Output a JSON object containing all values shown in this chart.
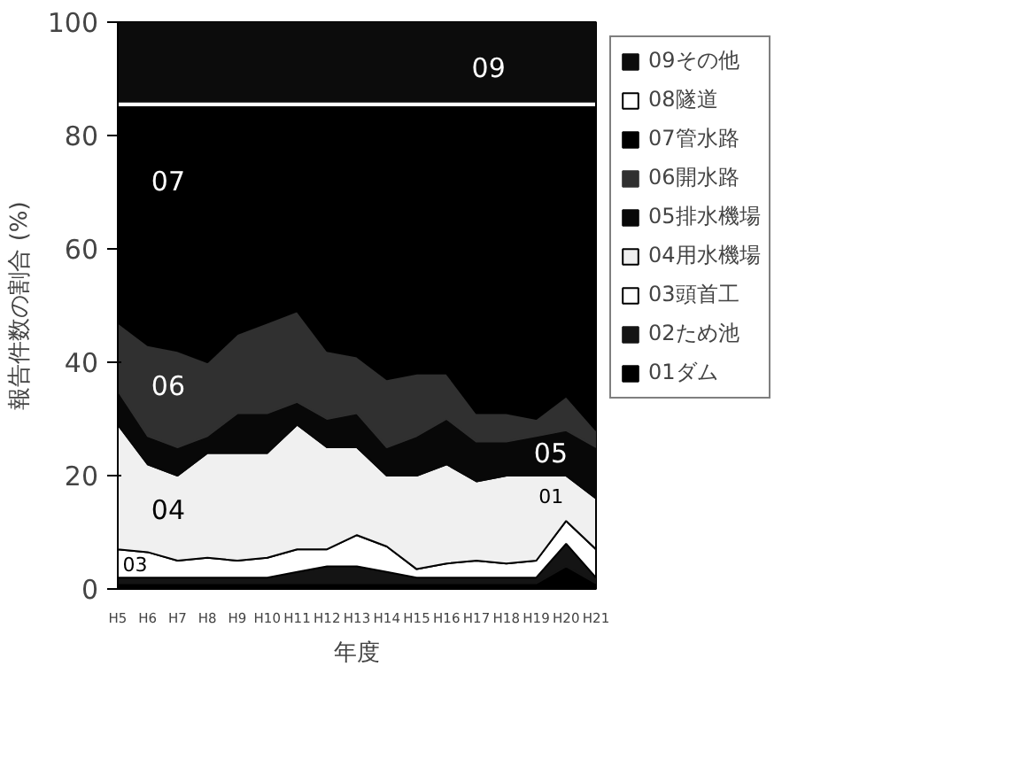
{
  "chart_data": {
    "type": "area",
    "stacked": true,
    "xlabel": "年度",
    "ylabel": "報告件数の割合 (%)",
    "categories": [
      "H5",
      "H6",
      "H7",
      "H8",
      "H9",
      "H10",
      "H11",
      "H12",
      "H13",
      "H14",
      "H15",
      "H16",
      "H17",
      "H18",
      "H19",
      "H20",
      "H21"
    ],
    "ylim": [
      0,
      100
    ],
    "yticks": [
      0,
      20,
      40,
      60,
      80,
      100
    ],
    "legend": "right",
    "series": [
      {
        "name": "01ダム",
        "color": "#000000",
        "values": [
          1,
          1,
          1,
          1,
          1,
          1,
          1,
          1,
          1,
          1,
          1,
          1,
          1,
          1,
          1,
          4,
          1
        ]
      },
      {
        "name": "02ため池",
        "color": "#141414",
        "values": [
          1,
          1,
          1,
          1,
          1,
          1,
          2,
          3,
          3,
          2,
          1,
          1,
          1,
          1,
          1,
          4,
          1
        ]
      },
      {
        "name": "03頭首工",
        "color": "#ffffff",
        "values": [
          5,
          4.5,
          3,
          3.5,
          3,
          3.5,
          4,
          3,
          5.5,
          4.5,
          1.5,
          2.5,
          3,
          2.5,
          3,
          4,
          5
        ]
      },
      {
        "name": "04用水機場",
        "color": "#f0f0f0",
        "values": [
          22,
          15.5,
          15,
          18.5,
          19,
          18.5,
          22,
          18,
          15.5,
          12.5,
          16.5,
          17.5,
          14,
          15.5,
          15,
          8,
          9
        ]
      },
      {
        "name": "05排水機場",
        "color": "#080808",
        "values": [
          6,
          5,
          5,
          3,
          7,
          7,
          4,
          5,
          6,
          5,
          7,
          8,
          7,
          6,
          7,
          8,
          9
        ]
      },
      {
        "name": "06開水路",
        "color": "#303030",
        "values": [
          12,
          16,
          17,
          13,
          14,
          16,
          16,
          12,
          10,
          12,
          11,
          8,
          5,
          5,
          3,
          6,
          3
        ]
      },
      {
        "name": "07管水路",
        "color": "#000000",
        "values": [
          38,
          42,
          43,
          45,
          40,
          38,
          36,
          43,
          44,
          48,
          47,
          47,
          54,
          54,
          55,
          51,
          57
        ]
      },
      {
        "name": "08隧道",
        "color": "#ffffff",
        "values": [
          1,
          1,
          1,
          1,
          1,
          1,
          1,
          1,
          1,
          1,
          1,
          1,
          1,
          1,
          1,
          1,
          1
        ]
      },
      {
        "name": "09その他",
        "color": "#0c0c0c",
        "values": [
          14,
          14,
          14,
          14,
          14,
          14,
          14,
          14,
          14,
          14,
          14,
          14,
          14,
          14,
          14,
          14,
          14
        ]
      }
    ],
    "annotations": [
      "09",
      "07",
      "06",
      "04",
      "03",
      "05",
      "01"
    ]
  }
}
